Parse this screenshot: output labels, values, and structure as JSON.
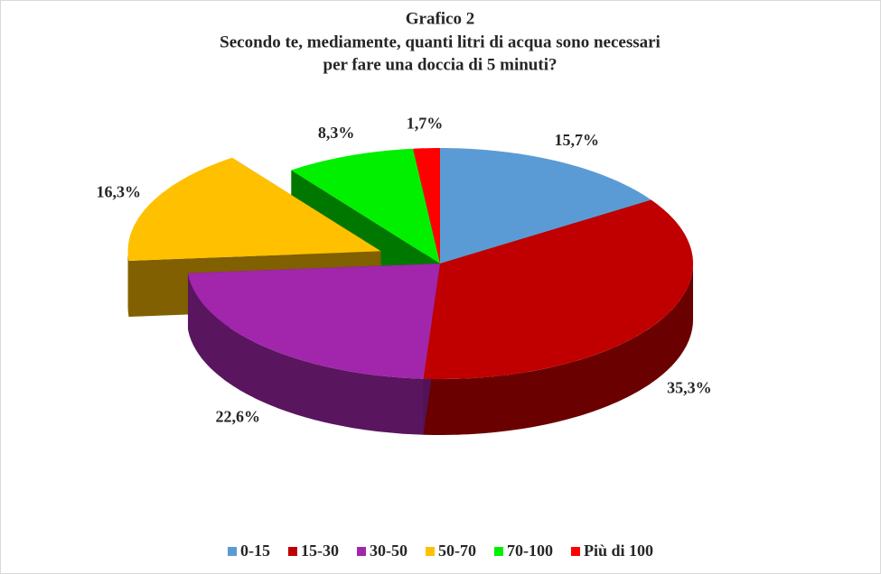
{
  "chart_data": {
    "type": "pie3d",
    "title": "Grafico 2",
    "subtitle": [
      "Secondo te, mediamente, quanti litri di acqua sono necessari",
      "per fare una doccia di 5 minuti?"
    ],
    "categories": [
      "0-15",
      "15-30",
      "30-50",
      "50-70",
      "70-100",
      "Più di 100"
    ],
    "values": [
      15.7,
      35.3,
      22.6,
      16.3,
      8.3,
      1.7
    ],
    "value_labels": [
      "15,7%",
      "35,3%",
      "22,6%",
      "16,3%",
      "8,3%",
      "1,7%"
    ],
    "colors": [
      "#5b9bd5",
      "#c00000",
      "#a126ab",
      "#ffc000",
      "#00f000",
      "#ff0000"
    ],
    "legend": "bottom"
  }
}
